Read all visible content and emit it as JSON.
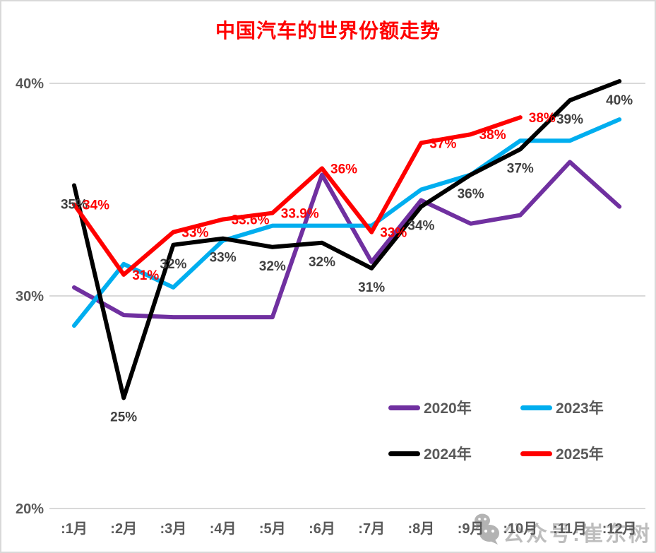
{
  "page": {
    "background": "#FFFFFF",
    "border_color": "#D9D9D9"
  },
  "chart_data": {
    "type": "line",
    "title": "中国汽车的世界份额走势",
    "title_color": "#FF0000",
    "xlabel": "",
    "ylabel": "",
    "categories": [
      ":1月",
      ":2月",
      ":3月",
      ":4月",
      ":5月",
      ":6月",
      ":7月",
      ":8月",
      ":9月",
      ":10月",
      ":11月",
      ":12月"
    ],
    "y_axis": {
      "ticks": [
        {
          "label": "20%",
          "value": 20
        },
        {
          "label": "30%",
          "value": 30
        },
        {
          "label": "40%",
          "value": 40
        }
      ],
      "range": [
        20,
        41
      ]
    },
    "grid": true,
    "grid_color": "#D9D9D9",
    "axis_label_color": "#595959",
    "legend_position": "inside-bottom-right",
    "series": [
      {
        "name": "2020年",
        "color": "#7030A0",
        "values": [
          30.4,
          29.1,
          29.0,
          29.0,
          29.0,
          35.7,
          31.6,
          34.5,
          33.4,
          33.8,
          36.3,
          34.2
        ],
        "data_labels": null,
        "data_label_pos": "none",
        "data_label_color": null
      },
      {
        "name": "2023年",
        "color": "#00AEEF",
        "values": [
          28.6,
          31.5,
          30.4,
          32.6,
          33.3,
          33.3,
          33.3,
          35.0,
          35.7,
          37.3,
          37.3,
          38.3
        ],
        "data_labels": null,
        "data_label_pos": "none",
        "data_label_color": null
      },
      {
        "name": "2024年",
        "color": "#000000",
        "values": [
          35.2,
          25.2,
          32.4,
          32.7,
          32.3,
          32.5,
          31.3,
          34.2,
          35.7,
          36.9,
          39.2,
          40.1
        ],
        "data_labels": [
          "35%",
          "25%",
          "32%",
          "33%",
          "32%",
          "32%",
          "31%",
          "34%",
          "36%",
          "37%",
          "39%",
          "40%"
        ],
        "data_label_pos": "below",
        "data_label_color": "#404040"
      },
      {
        "name": "2025年",
        "color": "#FF0000",
        "values": [
          34.3,
          31.0,
          33.0,
          33.6,
          33.9,
          36.0,
          33.0,
          37.2,
          37.6,
          38.4
        ],
        "data_labels": [
          "34%",
          "31%",
          "33%",
          "33.6%",
          "33.9%",
          "36%",
          "33%",
          "37%",
          "38%",
          "38%"
        ],
        "data_label_pos": "right",
        "data_label_color": "#FF0000"
      }
    ]
  },
  "watermark": {
    "icon": "wechat-icon",
    "text": "公众号:崔东树"
  }
}
